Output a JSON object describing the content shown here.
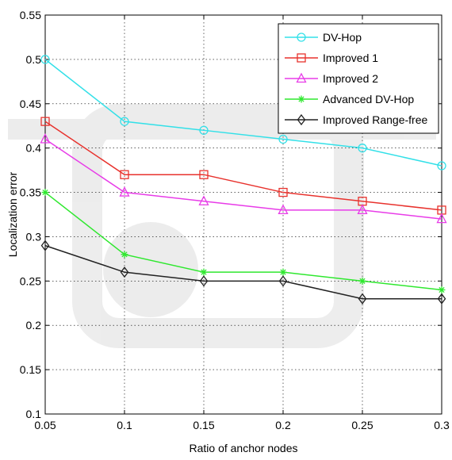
{
  "chart_data": {
    "type": "line",
    "xlabel": "Ratio of anchor nodes",
    "ylabel": "Localization error",
    "x": [
      0.05,
      0.1,
      0.15,
      0.2,
      0.25,
      0.3
    ],
    "xlim": [
      0.05,
      0.3
    ],
    "ylim": [
      0.1,
      0.55
    ],
    "xticks": [
      "0.05",
      "0.1",
      "0.15",
      "0.2",
      "0.25",
      "0.3"
    ],
    "yticks": [
      "0.1",
      "0.15",
      "0.2",
      "0.25",
      "0.3",
      "0.35",
      "0.4",
      "0.45",
      "0.5",
      "0.55"
    ],
    "grid": true,
    "legend_position": "top-right",
    "series": [
      {
        "name": "DV-Hop",
        "values": [
          0.5,
          0.43,
          0.42,
          0.41,
          0.4,
          0.38
        ],
        "color": "#33e0e8",
        "marker": "circle"
      },
      {
        "name": "Improved 1",
        "values": [
          0.43,
          0.37,
          0.37,
          0.35,
          0.34,
          0.33
        ],
        "color": "#e8322d",
        "marker": "square"
      },
      {
        "name": "Improved 2",
        "values": [
          0.41,
          0.35,
          0.34,
          0.33,
          0.33,
          0.32
        ],
        "color": "#e83ce8",
        "marker": "triangle"
      },
      {
        "name": "Advanced DV-Hop",
        "values": [
          0.35,
          0.28,
          0.26,
          0.26,
          0.25,
          0.24
        ],
        "color": "#2fe82f",
        "marker": "star"
      },
      {
        "name": "Improved Range-free",
        "values": [
          0.29,
          0.26,
          0.25,
          0.25,
          0.23,
          0.23
        ],
        "color": "#222222",
        "marker": "diamond"
      }
    ]
  }
}
